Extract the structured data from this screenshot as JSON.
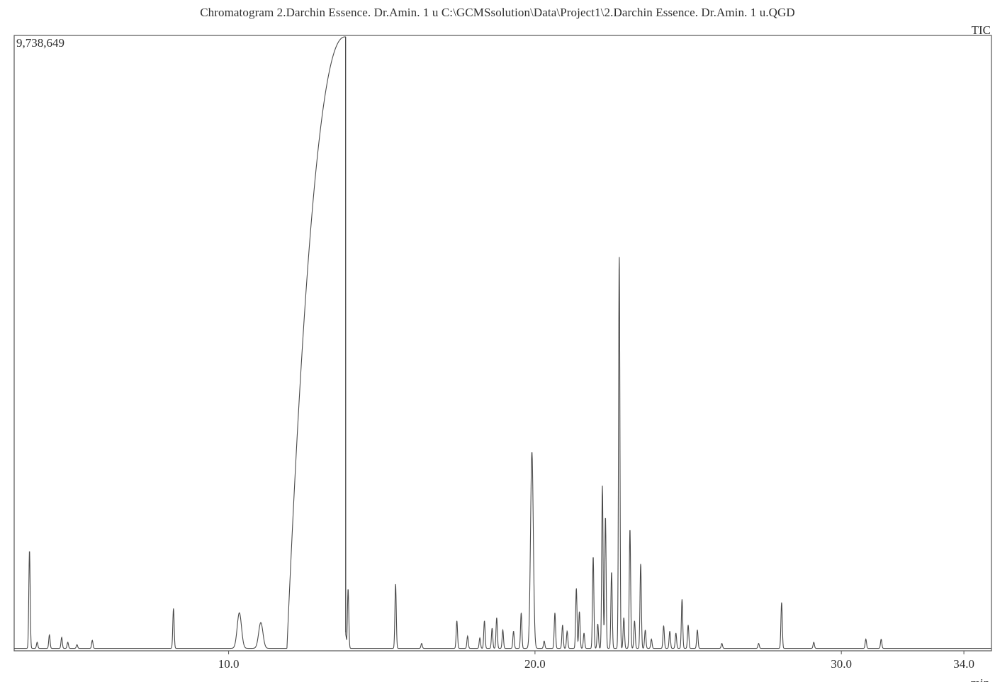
{
  "header": {
    "title": "Chromatogram 2.Darchin Essence. Dr.Amin. 1 u C:\\GCMSsolution\\Data\\Project1\\2.Darchin Essence. Dr.Amin.  1 u.QGD",
    "trace_label": "TIC",
    "y_max_label": "9,738,649"
  },
  "chart_data": {
    "type": "line",
    "title": "Chromatogram 2.Darchin Essence. Dr.Amin. 1 u C:\\GCMSsolution\\Data\\Project1\\2.Darchin Essence. Dr.Amin.  1 u.QGD",
    "xlabel": "min",
    "ylabel": "",
    "xlim": [
      3.0,
      34.9
    ],
    "ylim": [
      0,
      9738649
    ],
    "x_ticks": [
      10.0,
      20.0,
      30.0,
      34.0
    ],
    "x_tick_labels": [
      "10.0",
      "20.0",
      "30.0",
      "34.0"
    ],
    "series": [
      {
        "name": "TIC",
        "baseline": 0.004,
        "peaks": [
          {
            "x": 3.5,
            "y": 0.16
          },
          {
            "x": 3.75,
            "y": 0.01
          },
          {
            "x": 4.15,
            "y": 0.022
          },
          {
            "x": 4.55,
            "y": 0.018
          },
          {
            "x": 4.75,
            "y": 0.01
          },
          {
            "x": 5.05,
            "y": 0.006
          },
          {
            "x": 5.55,
            "y": 0.013
          },
          {
            "x": 8.2,
            "y": 0.065
          },
          {
            "x": 10.35,
            "y": 0.058
          },
          {
            "x": 11.05,
            "y": 0.042
          },
          {
            "x": 13.9,
            "y": 0.097
          },
          {
            "x": 15.45,
            "y": 0.105
          },
          {
            "x": 16.3,
            "y": 0.008
          },
          {
            "x": 17.45,
            "y": 0.045
          },
          {
            "x": 17.8,
            "y": 0.02
          },
          {
            "x": 18.2,
            "y": 0.017
          },
          {
            "x": 18.35,
            "y": 0.045
          },
          {
            "x": 18.6,
            "y": 0.033
          },
          {
            "x": 18.75,
            "y": 0.05
          },
          {
            "x": 18.95,
            "y": 0.03
          },
          {
            "x": 19.3,
            "y": 0.028
          },
          {
            "x": 19.55,
            "y": 0.058
          },
          {
            "x": 19.9,
            "y": 0.32
          },
          {
            "x": 20.3,
            "y": 0.012
          },
          {
            "x": 20.65,
            "y": 0.058
          },
          {
            "x": 20.9,
            "y": 0.038
          },
          {
            "x": 21.05,
            "y": 0.028
          },
          {
            "x": 21.35,
            "y": 0.098
          },
          {
            "x": 21.45,
            "y": 0.06
          },
          {
            "x": 21.6,
            "y": 0.025
          },
          {
            "x": 21.9,
            "y": 0.15
          },
          {
            "x": 22.05,
            "y": 0.04
          },
          {
            "x": 22.2,
            "y": 0.265
          },
          {
            "x": 22.3,
            "y": 0.215
          },
          {
            "x": 22.5,
            "y": 0.125
          },
          {
            "x": 22.75,
            "y": 0.64
          },
          {
            "x": 22.9,
            "y": 0.05
          },
          {
            "x": 23.1,
            "y": 0.195
          },
          {
            "x": 23.25,
            "y": 0.045
          },
          {
            "x": 23.45,
            "y": 0.138
          },
          {
            "x": 23.6,
            "y": 0.03
          },
          {
            "x": 23.8,
            "y": 0.015
          },
          {
            "x": 24.2,
            "y": 0.037
          },
          {
            "x": 24.4,
            "y": 0.028
          },
          {
            "x": 24.6,
            "y": 0.025
          },
          {
            "x": 24.8,
            "y": 0.08
          },
          {
            "x": 25.0,
            "y": 0.038
          },
          {
            "x": 25.3,
            "y": 0.03
          },
          {
            "x": 26.1,
            "y": 0.008
          },
          {
            "x": 27.3,
            "y": 0.008
          },
          {
            "x": 28.05,
            "y": 0.075
          },
          {
            "x": 29.1,
            "y": 0.01
          },
          {
            "x": 30.8,
            "y": 0.015
          },
          {
            "x": 31.3,
            "y": 0.015
          }
        ],
        "big_peak": {
          "start": 11.9,
          "apex": 13.8,
          "end": 13.82,
          "height": 1.0
        }
      }
    ]
  }
}
